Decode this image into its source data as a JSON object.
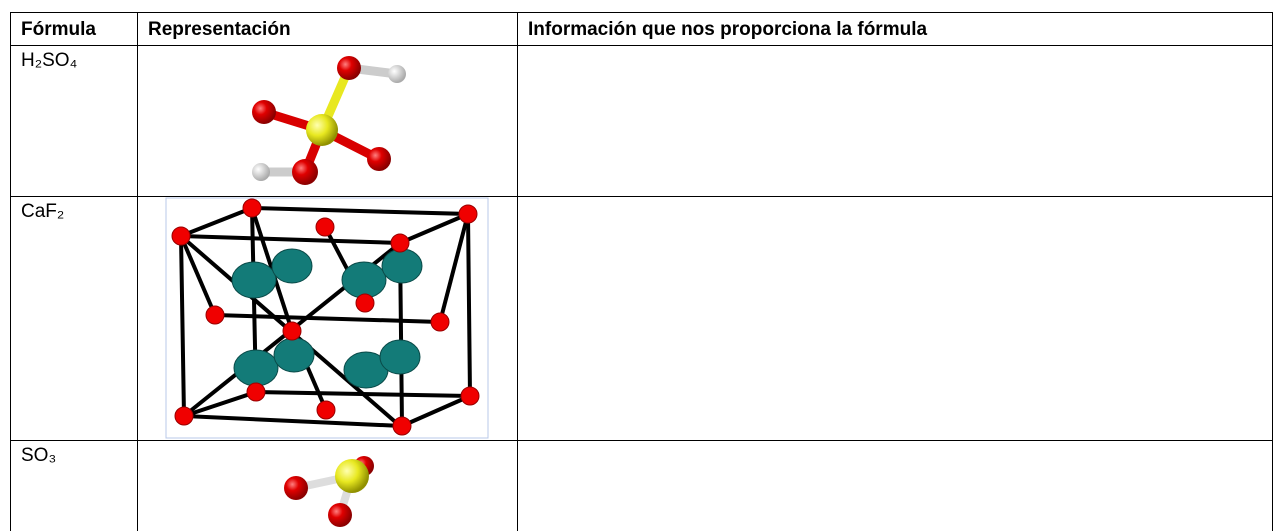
{
  "table": {
    "header": [
      "Fórmula",
      "Representación",
      "Información que nos proporciona la fórmula"
    ],
    "rows": [
      [
        "H₂SO₄"
      ],
      [
        "CaF₂"
      ],
      [
        "SO₃"
      ]
    ]
  }
}
